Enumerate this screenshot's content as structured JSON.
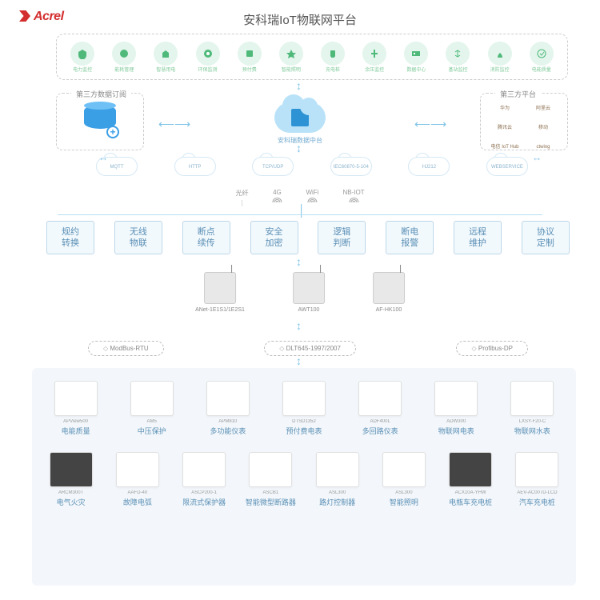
{
  "brand": "Acrel",
  "title": "安科瑞IoT物联网平台",
  "colors": {
    "brand": "#d32f2f",
    "accent": "#4fb97a",
    "blue": "#5a8fb5",
    "cloud": "#b9e2f8",
    "box_border": "#bcd6e8",
    "box_fill": "#f2f9fd",
    "panel": "#f3f7fb",
    "line": "#b9dff2"
  },
  "platform_modules": [
    {
      "name": "电力监控"
    },
    {
      "name": "能耗管理"
    },
    {
      "name": "智慧用电"
    },
    {
      "name": "环保监测"
    },
    {
      "name": "预付费"
    },
    {
      "name": "智能照明"
    },
    {
      "name": "充电桩"
    },
    {
      "name": "余压监控"
    },
    {
      "name": "数据中心"
    },
    {
      "name": "基站监控"
    },
    {
      "name": "消防监控"
    },
    {
      "name": "电能质量"
    }
  ],
  "left_box": {
    "title": "第三方数据订阅"
  },
  "right_box": {
    "title": "第三方平台",
    "items": [
      "华为",
      "阿里云",
      "腾讯云",
      "移动",
      "电信 IoT Hub",
      "ctwing"
    ]
  },
  "center_cloud": "安科瑞数据中台",
  "protocols": [
    "MQTT",
    "HTTP",
    "TCP/UDP",
    "IEC60870-5-104",
    "HJ212",
    "WEBSERVICE"
  ],
  "connectivity": [
    "光纤",
    "4G",
    "WiFi",
    "NB-IOT"
  ],
  "features": [
    "规约\n转换",
    "无线\n物联",
    "断点\n续传",
    "安全\n加密",
    "逻辑\n判断",
    "断电\n报警",
    "远程\n维护",
    "协议\n定制"
  ],
  "gateways": [
    {
      "code": "ANet-1E1S1/1E2S1"
    },
    {
      "code": "AWT100"
    },
    {
      "code": "AF-HK100"
    }
  ],
  "buses": [
    "ModBus-RTU",
    "DLT645-1997/2007",
    "Profibus-DP"
  ],
  "products_row1": [
    {
      "code": "APView500",
      "name": "电能质量"
    },
    {
      "code": "AM5",
      "name": "中压保护"
    },
    {
      "code": "APM810",
      "name": "多功能仪表"
    },
    {
      "code": "DTSD1352",
      "name": "预付费电表"
    },
    {
      "code": "ADF400L",
      "name": "多回路仪表"
    },
    {
      "code": "ADW300",
      "name": "物联网电表"
    },
    {
      "code": "LXSY-F20-C",
      "name": "物联网水表"
    }
  ],
  "products_row2": [
    {
      "code": "ARCM300T",
      "name": "电气火灾"
    },
    {
      "code": "AAFD-40",
      "name": "故障电弧"
    },
    {
      "code": "ASCP200-1",
      "name": "限流式保护器"
    },
    {
      "code": "ASCB1",
      "name": "智能微型断路器"
    },
    {
      "code": "ASL300",
      "name": "路灯控制器"
    },
    {
      "code": "ASL300",
      "name": "智能照明"
    },
    {
      "code": "ACX10A-YHW",
      "name": "电瓶车充电桩"
    },
    {
      "code": "AEV-AC007D-LCD",
      "name": "汽车充电桩"
    }
  ]
}
